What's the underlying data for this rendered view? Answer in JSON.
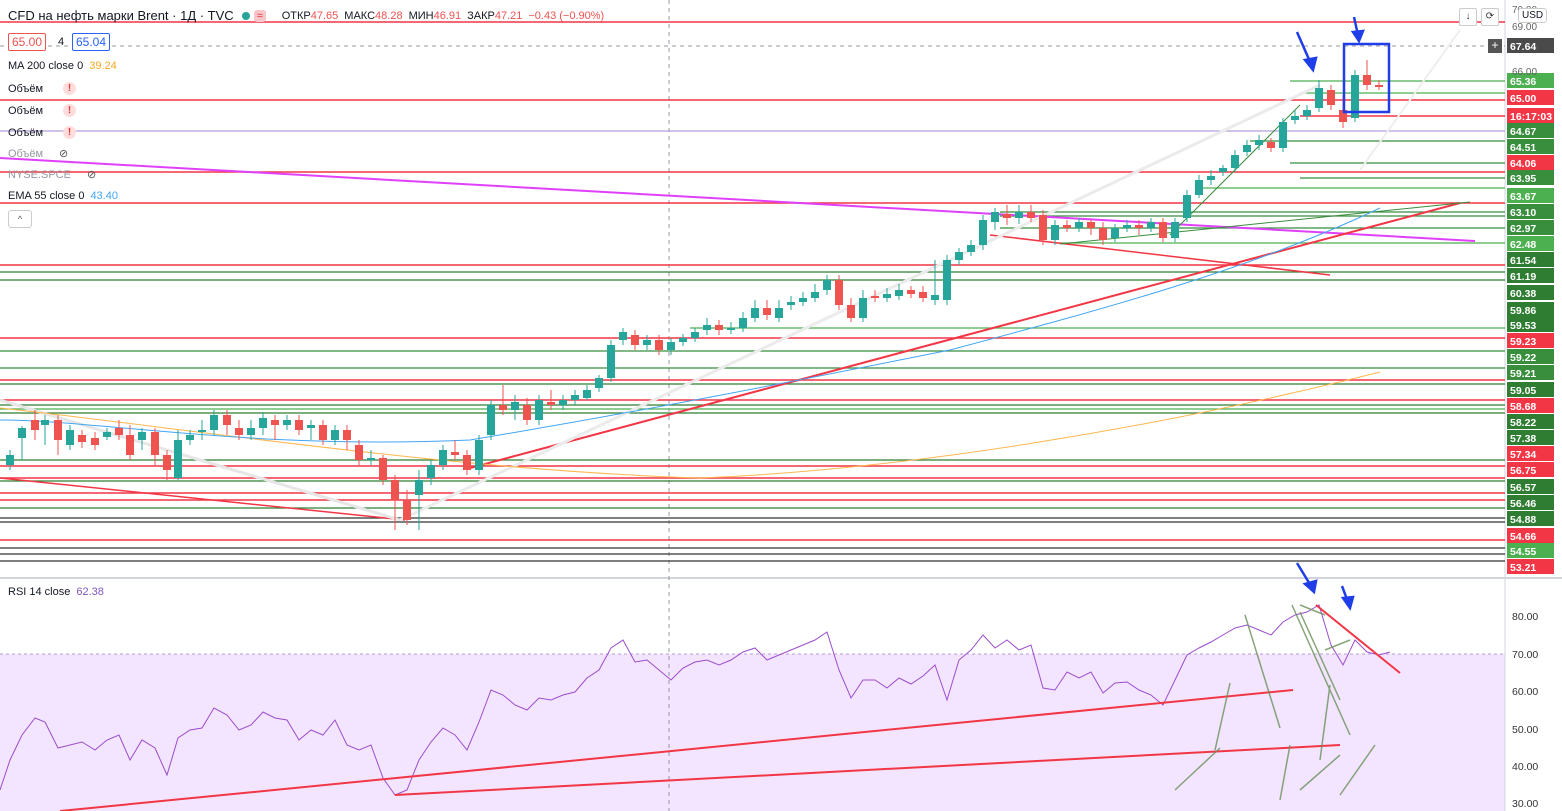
{
  "header": {
    "symbol": "CFD на нефть марки Brent · 1Д · TVC",
    "open_label": "ОТКР",
    "open_value": "47.65",
    "high_label": "МАКС",
    "high_value": "48.28",
    "low_label": "МИН",
    "low_value": "46.91",
    "close_label": "ЗАКР",
    "close_value": "47.21",
    "change": "−0.43 (−0.90%)"
  },
  "price_box": {
    "bid": "65.00",
    "spread": "4",
    "ask": "65.04"
  },
  "indicators": {
    "ma200": {
      "label": "MA 200 close 0",
      "value": "39.24"
    },
    "volume1": "Объём",
    "volume2": "Объём",
    "volume3": "Объём",
    "volume4": "Объём",
    "nyse": "NYSE:SPCE",
    "ema55": {
      "label": "EMA 55 close 0",
      "value": "43.40"
    },
    "warn_icon": "!",
    "eye_icon": "eye-off-icon"
  },
  "collapse_label": "^",
  "toolbar": {
    "scroll_down": "↓",
    "settings": "⟳",
    "currency": "USD"
  },
  "crosshair_plus": "+",
  "rsi": {
    "label": "RSI 14 close",
    "value": "62.38",
    "ticks": [
      "80.00",
      "70.00",
      "60.00",
      "50.00",
      "40.00",
      "30.00"
    ]
  },
  "price_axis": [
    {
      "v": "67.64",
      "c": "#4a4a4a"
    },
    {
      "v": "65.36",
      "c": "#4caf50"
    },
    {
      "v": "65.00",
      "c": "#f23645"
    },
    {
      "v": "16:17:03",
      "c": "#f23645"
    },
    {
      "v": "64.67",
      "c": "#388e3c"
    },
    {
      "v": "64.51",
      "c": "#388e3c"
    },
    {
      "v": "64.06",
      "c": "#f23645"
    },
    {
      "v": "63.95",
      "c": "#388e3c"
    },
    {
      "v": "63.67",
      "c": "#4caf50"
    },
    {
      "v": "63.10",
      "c": "#388e3c"
    },
    {
      "v": "62.97",
      "c": "#388e3c"
    },
    {
      "v": "62.48",
      "c": "#4caf50"
    },
    {
      "v": "61.54",
      "c": "#2e7d32"
    },
    {
      "v": "61.19",
      "c": "#2e7d32"
    },
    {
      "v": "60.38",
      "c": "#2e7d32"
    },
    {
      "v": "59.86",
      "c": "#2e7d32"
    },
    {
      "v": "59.53",
      "c": "#2e7d32"
    },
    {
      "v": "59.23",
      "c": "#f23645"
    },
    {
      "v": "59.22",
      "c": "#388e3c"
    },
    {
      "v": "59.21",
      "c": "#388e3c"
    },
    {
      "v": "59.05",
      "c": "#2e7d32"
    },
    {
      "v": "58.68",
      "c": "#f23645"
    },
    {
      "v": "58.22",
      "c": "#2e7d32"
    },
    {
      "v": "57.38",
      "c": "#2e7d32"
    },
    {
      "v": "57.34",
      "c": "#f23645"
    },
    {
      "v": "56.75",
      "c": "#f23645"
    },
    {
      "v": "56.57",
      "c": "#2e7d32"
    },
    {
      "v": "56.46",
      "c": "#2e7d32"
    },
    {
      "v": "54.88",
      "c": "#2e7d32"
    },
    {
      "v": "54.66",
      "c": "#f23645"
    },
    {
      "v": "54.55",
      "c": "#4caf50"
    },
    {
      "v": "53.21",
      "c": "#f23645"
    }
  ],
  "top_axis_ticks": [
    "70.00",
    "69.00",
    "66.00"
  ],
  "colors": {
    "up": "#26a69a",
    "down": "#ef5350",
    "rsi_line": "#9c4dcc",
    "rsi_band": "#f3e5ff",
    "ema": "#42a5f5",
    "ma": "#ffb74d",
    "magenta": "#e040fb",
    "hline_red": "#f23645",
    "hline_green": "#4caf50"
  }
}
